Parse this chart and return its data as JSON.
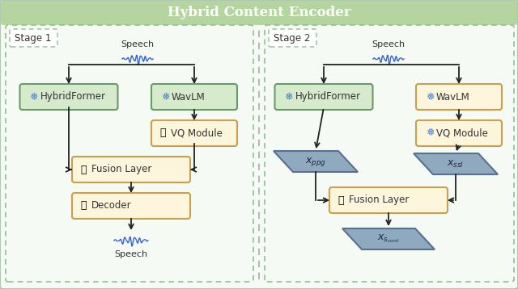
{
  "title": "Hybrid Content Encoder",
  "title_bg": "#b5d5a0",
  "title_color": "white",
  "outer_bg": "#ffffff",
  "inner_bg": "#f5faf5",
  "box_bg_green": "#d6eacc",
  "box_bg_yellow": "#fdf5dc",
  "box_border_green": "#6a9a6a",
  "box_border_yellow": "#c8a050",
  "parallelogram_bg": "#8faabf",
  "parallelogram_border": "#5a7090",
  "stage_border": "#90c090",
  "arrow_color": "#222222",
  "dashed_line_color": "#999999",
  "text_color": "#333333",
  "stage1_label": "Stage 1",
  "stage2_label": "Stage 2",
  "speech_label": "Speech",
  "hybridformer_label": "HybridFormer",
  "wavlm_label": "WavLM",
  "vq_label": "VQ Module",
  "fusion_label": "Fusion Layer",
  "decoder_label": "Decoder"
}
